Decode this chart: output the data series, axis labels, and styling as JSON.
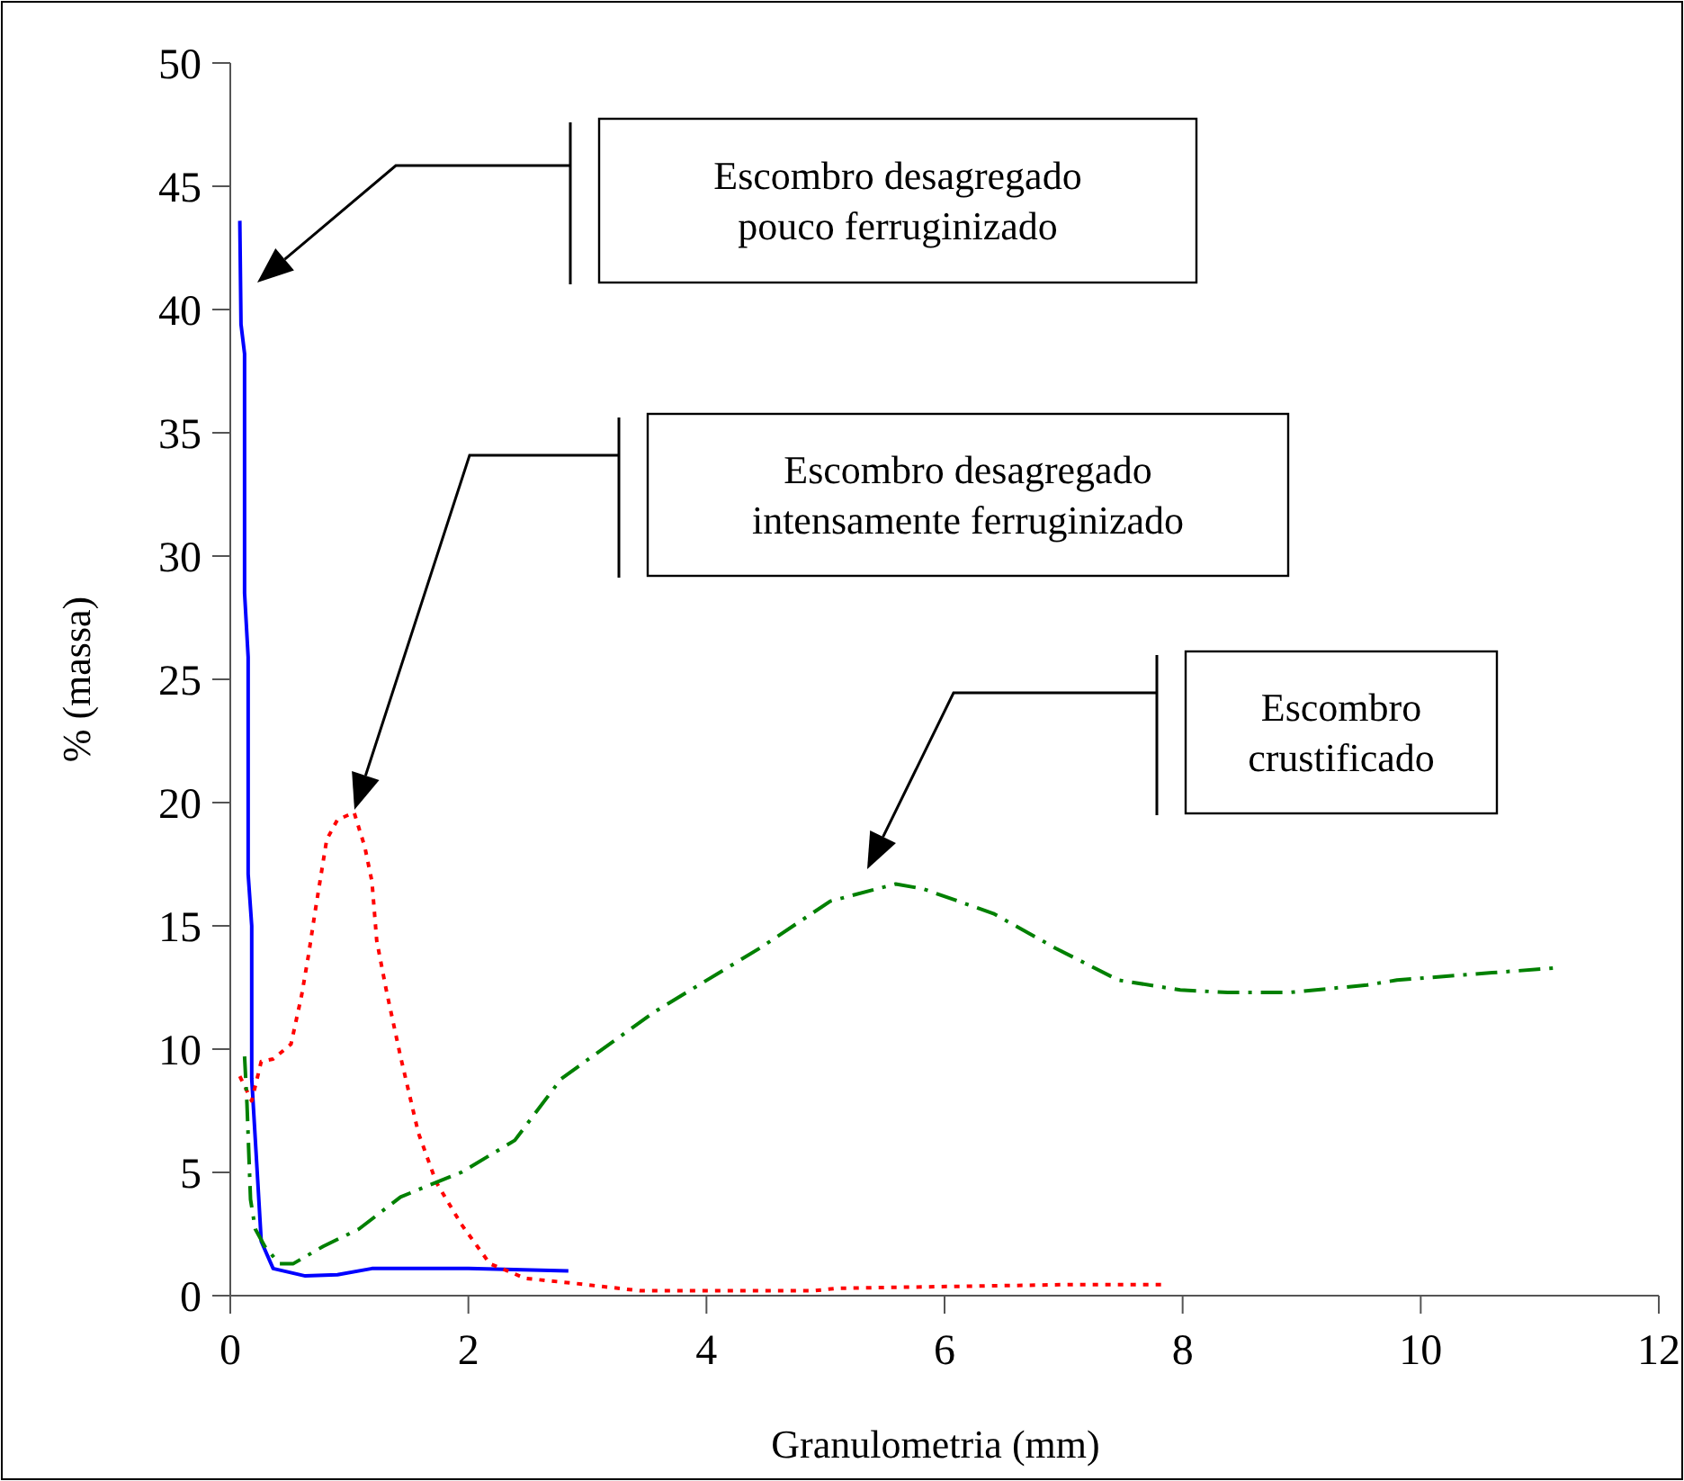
{
  "chart_data": {
    "type": "line",
    "xlabel": "Granulometria (mm)",
    "ylabel": "% (massa)",
    "xlim": [
      0,
      12
    ],
    "xticks": [
      0,
      2,
      4,
      6,
      8,
      10,
      12
    ],
    "ylim": [
      0,
      50
    ],
    "yticks": [
      0,
      5,
      10,
      15,
      20,
      25,
      30,
      35,
      40,
      45,
      50
    ],
    "grid": false,
    "marker": "none",
    "series": [
      {
        "color": "#0000ff",
        "line_style": "solid",
        "x": [
          0.08,
          0.09,
          0.12,
          0.12,
          0.15,
          0.15,
          0.18,
          0.18,
          0.23,
          0.26,
          0.36,
          0.63,
          0.9,
          1.19,
          2.0,
          2.84
        ],
        "values": [
          43.6,
          39.4,
          38.2,
          28.5,
          25.9,
          17.1,
          15,
          8.8,
          4.7,
          2.2,
          1.1,
          0.8,
          0.85,
          1.1,
          1.1,
          1.0
        ]
      },
      {
        "color": "#ff0000",
        "line_style": "dotted",
        "x": [
          0.08,
          0.18,
          0.26,
          0.36,
          0.51,
          0.6,
          0.66,
          0.71,
          0.81,
          0.9,
          1.04,
          1.13,
          1.19,
          1.23,
          1.31,
          1.43,
          1.58,
          1.73,
          1.94,
          2.18,
          2.48,
          2.89,
          3.44,
          4.9,
          5.1,
          7.07,
          7.85
        ],
        "values": [
          8.9,
          7.9,
          9.5,
          9.6,
          10.2,
          12.2,
          13.9,
          15.5,
          18.5,
          19.3,
          19.6,
          18.2,
          16.8,
          14.4,
          12.4,
          9.7,
          6.6,
          4.6,
          2.9,
          1.3,
          0.7,
          0.5,
          0.2,
          0.2,
          0.3,
          0.45,
          0.45
        ]
      },
      {
        "color": "#008000",
        "line_style": "dashed",
        "x": [
          0.12,
          0.14,
          0.17,
          0.21,
          0.29,
          0.41,
          0.53,
          0.78,
          1.08,
          1.43,
          1.68,
          1.94,
          2.39,
          2.78,
          3.56,
          4.45,
          5.04,
          5.59,
          5.82,
          6.41,
          6.93,
          7.46,
          7.98,
          8.38,
          8.9,
          9.55,
          9.8,
          10.6,
          11.16
        ],
        "values": [
          9.7,
          7.8,
          3.9,
          2.7,
          2.0,
          1.3,
          1.3,
          2.0,
          2.7,
          4.0,
          4.5,
          5.0,
          6.3,
          8.8,
          11.5,
          14.1,
          16.0,
          16.7,
          16.5,
          15.5,
          14.1,
          12.8,
          12.4,
          12.3,
          12.3,
          12.6,
          12.8,
          13.1,
          13.3
        ]
      }
    ],
    "annotations": [
      "Escombro desagregado pouco ferruginizado",
      "Escombro desagregado intensamente ferruginizado",
      "Escombro crustificado"
    ]
  }
}
